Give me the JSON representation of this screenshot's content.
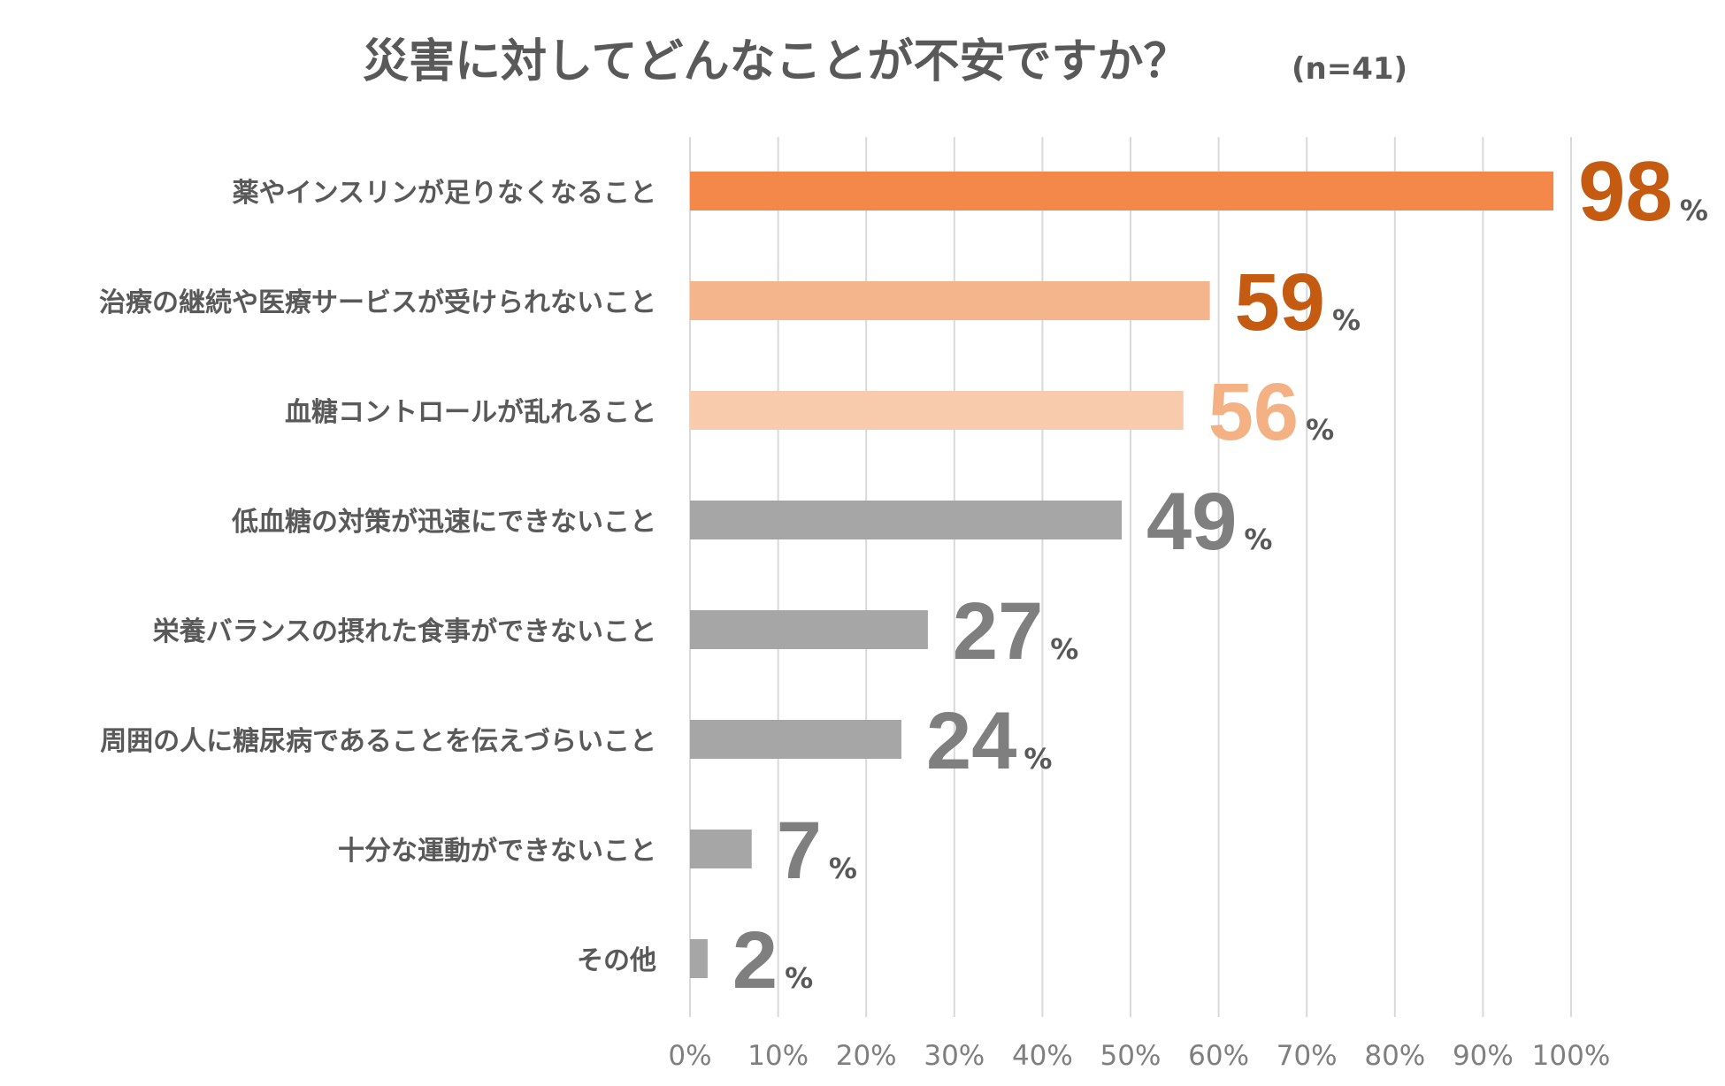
{
  "chart_data": {
    "type": "bar",
    "orientation": "horizontal",
    "title": "災害に対してどんなことが不安ですか？",
    "subtitle": "(n=41)",
    "categories": [
      "薬やインスリンが足りなくなること",
      "治療の継続や医療サービスが受けられないこと",
      "血糖コントロールが乱れること",
      "低血糖の対策が迅速にできないこと",
      "栄養バランスの摂れた食事ができないこと",
      "周囲の人に糖尿病であることを伝えづらいこと",
      "十分な運動ができないこと",
      "その他"
    ],
    "values": [
      98,
      59,
      56,
      49,
      27,
      24,
      7,
      2
    ],
    "value_labels": [
      "98",
      "59",
      "56",
      "49",
      "27",
      "24",
      "7",
      "2"
    ],
    "value_unit": "%",
    "xlim": [
      0,
      100
    ],
    "x_ticks": [
      "0%",
      "10%",
      "20%",
      "30%",
      "40%",
      "50%",
      "60%",
      "70%",
      "80%",
      "90%",
      "100%"
    ],
    "grid": "vertical",
    "bar_colors": [
      "#f4884a",
      "#f4b58c",
      "#f8cbad",
      "#a6a6a6",
      "#a6a6a6",
      "#a6a6a6",
      "#a6a6a6",
      "#a6a6a6"
    ],
    "label_colors": [
      "#c55a11",
      "#c55a11",
      "#f4b183",
      "#7f7f7f",
      "#7f7f7f",
      "#7f7f7f",
      "#7f7f7f",
      "#7f7f7f"
    ],
    "pct_sign_color": "#595959",
    "grid_color": "#d9d9d9"
  }
}
